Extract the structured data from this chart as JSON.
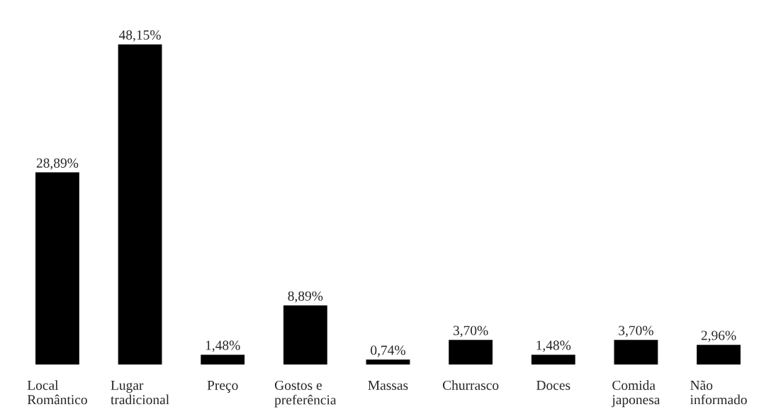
{
  "chart_data": {
    "type": "bar",
    "categories": [
      "Local\nRomântico",
      "Lugar\ntradicional",
      "Preço",
      "Gostos e\npreferência",
      "Massas",
      "Churrasco",
      "Doces",
      "Comida\njaponesa",
      "Não\ninformado"
    ],
    "values": [
      28.89,
      48.15,
      1.48,
      8.89,
      0.74,
      3.7,
      1.48,
      3.7,
      2.96
    ],
    "value_labels": [
      "28,89%",
      "48,15%",
      "1,48%",
      "8,89%",
      "0,74%",
      "3,70%",
      "1,48%",
      "3,70%",
      "2,96%"
    ],
    "color": "#000000",
    "grid": false
  }
}
